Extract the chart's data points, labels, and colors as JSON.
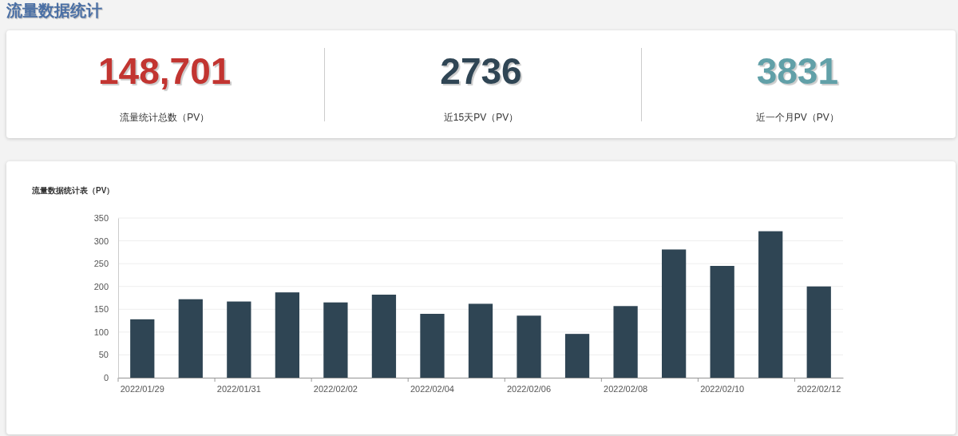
{
  "chart_data": [
    {
      "type": "other",
      "title": "流量数据统计",
      "categories": [
        "流量统计总数（PV）",
        "近15天PV（PV）",
        "近一个月PV（PV）"
      ],
      "annotations": [
        "148,701",
        "2736",
        "3831"
      ]
    },
    {
      "type": "bar",
      "title": "流量数据统计表（PV）",
      "categories": [
        "2022/01/29",
        null,
        "2022/01/31",
        null,
        "2022/02/02",
        null,
        "2022/02/04",
        null,
        "2022/02/06",
        null,
        "2022/02/08",
        null,
        "2022/02/10",
        null,
        "2022/02/12"
      ],
      "values": [
        128,
        172,
        167,
        187,
        165,
        182,
        140,
        162,
        136,
        96,
        157,
        281,
        245,
        321,
        200
      ],
      "color": "#2f4554",
      "ylim": [
        0,
        350
      ],
      "yticks": [
        0,
        50,
        100,
        150,
        200,
        250,
        300,
        350
      ],
      "grid": "y"
    }
  ]
}
